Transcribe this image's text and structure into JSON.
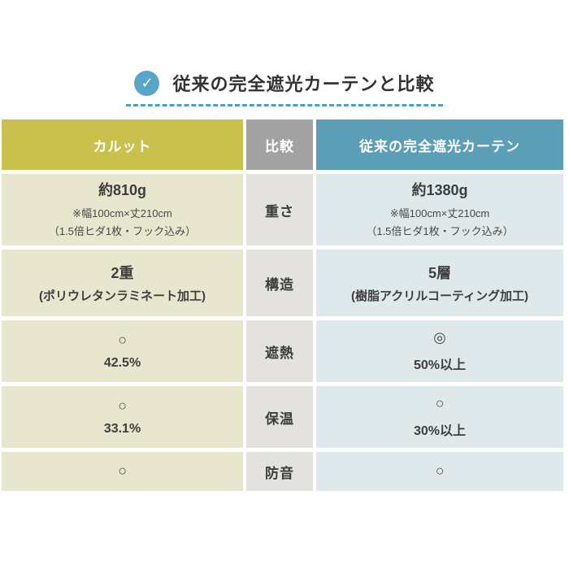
{
  "title": {
    "text": "従来の完全遮光カーテンと比較",
    "check_glyph": "✓"
  },
  "table": {
    "headers": {
      "left": "カルット",
      "middle": "比較",
      "right": "従来の完全遮光カーテン"
    },
    "rows": [
      {
        "label": "重さ",
        "left": {
          "main": "約810g",
          "note1": "※幅100cm×丈210cm",
          "note2": "（1.5倍ヒダ1枚・フック込み）"
        },
        "right": {
          "main": "約1380g",
          "note1": "※幅100cm×丈210cm",
          "note2": "（1.5倍ヒダ1枚・フック込み）"
        }
      },
      {
        "label": "構造",
        "left": {
          "main": "2重",
          "note1": "(ポリウレタンラミネート加工)"
        },
        "right": {
          "main": "5層",
          "note1": "(樹脂アクリルコーティング加工)"
        }
      },
      {
        "label": "遮熱",
        "left": {
          "symbol": "○",
          "value": "42.5%"
        },
        "right": {
          "symbol": "◎",
          "value": "50%以上"
        }
      },
      {
        "label": "保温",
        "left": {
          "symbol": "○",
          "value": "33.1%"
        },
        "right": {
          "symbol": "○",
          "value": "30%以上"
        }
      },
      {
        "label": "防音",
        "left": {
          "symbol": "○"
        },
        "right": {
          "symbol": "○"
        }
      }
    ]
  },
  "colors": {
    "header_left": "#c9c04e",
    "header_middle": "#a2a2a2",
    "header_right": "#5c9eb6",
    "body_left": "#e9e6cf",
    "body_middle": "#e3e2de",
    "body_right": "#dfe9ec",
    "title_icon": "#57a5c9",
    "dashed_line": "#4d9fc7",
    "text": "#3d3d3d"
  }
}
